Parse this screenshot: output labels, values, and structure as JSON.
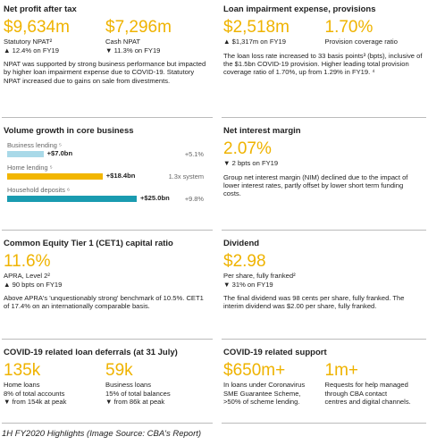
{
  "panels": [
    {
      "title": "Net profit after tax",
      "metrics": [
        {
          "value": "$9,634m",
          "lines": [
            "Statutory NPAT²",
            "▲ 12.4% on FY19"
          ]
        },
        {
          "value": "$7,296m",
          "lines": [
            "Cash NPAT",
            "▼ 11.3% on FY19"
          ]
        }
      ],
      "text": "NPAT was supported by strong business performance but impacted by higher loan impairment expense due to COVID-19. Statutory NPAT increased due to gains on sale from divestments."
    },
    {
      "title": "Loan impairment expense, provisions",
      "metrics": [
        {
          "value": "$2,518m",
          "lines": [
            "▲ $1,317m on FY19"
          ]
        },
        {
          "value": "1.70%",
          "lines": [
            "Provision coverage ratio"
          ]
        }
      ],
      "text": "The loan loss rate increased to 33 basis points³ (bpts), inclusive of the $1.5bn COVID-19 provision. Higher leading total provision coverage ratio of 1.70%, up from 1.29% in FY19. ⁴"
    },
    {
      "title": "Volume growth in core business",
      "bars": [
        {
          "name": "Business lending ⁵",
          "value": 7.0,
          "value_label": "+$7.0bn",
          "note": "+5.1%",
          "color": "#a9d9e8"
        },
        {
          "name": "Home lending ⁵",
          "value": 18.4,
          "value_label": "+$18.4bn",
          "note": "1.3x system",
          "color": "#f2b600"
        },
        {
          "name": "Household deposits ⁶",
          "value": 25.0,
          "value_label": "+$25.0bn",
          "note": "+9.8%",
          "color": "#1a9bb0"
        }
      ]
    },
    {
      "title": "Net interest margin",
      "metrics": [
        {
          "value": "2.07%",
          "lines": [
            "▼ 2 bpts on FY19"
          ]
        }
      ],
      "text": "Group net interest margin (NIM) declined due to the impact of lower interest rates, partly offset by lower short term funding costs."
    },
    {
      "title": "Common Equity Tier 1 (CET1) capital ratio",
      "metrics": [
        {
          "value": "11.6%",
          "lines": [
            "APRA, Level 2²",
            "▲ 90 bpts on FY19"
          ]
        }
      ],
      "text": "Above APRA's 'unquestionably strong' benchmark of 10.5%. CET1 of 17.4% on an internationally comparable basis."
    },
    {
      "title": "Dividend",
      "metrics": [
        {
          "value": "$2.98",
          "lines": [
            "Per share, fully franked²",
            "▼ 31% on FY19"
          ]
        }
      ],
      "text": "The final dividend was 98 cents per share, fully franked. The interim dividend was $2.00 per share, fully franked."
    },
    {
      "title": "COVID-19 related loan deferrals (at 31 July)",
      "metrics": [
        {
          "value": "135k",
          "lines": [
            "Home loans",
            "8% of total accounts",
            "▼ from 154k at peak"
          ]
        },
        {
          "value": "59k",
          "lines": [
            "Business loans",
            "15% of total balances",
            "▼ from 86k at peak"
          ]
        }
      ]
    },
    {
      "title": "COVID-19 related support",
      "metrics": [
        {
          "value": "$650m+",
          "lines": [
            "In loans under Coronavirus",
            "SME Guarantee Scheme,",
            ">50% of scheme lending."
          ]
        },
        {
          "value": "1m+",
          "lines": [
            "Requests for help managed",
            "through CBA contact",
            "centres and digital channels."
          ]
        }
      ]
    }
  ],
  "caption": "1H FY2020 Highlights (Image Source: CBA's Report)"
}
